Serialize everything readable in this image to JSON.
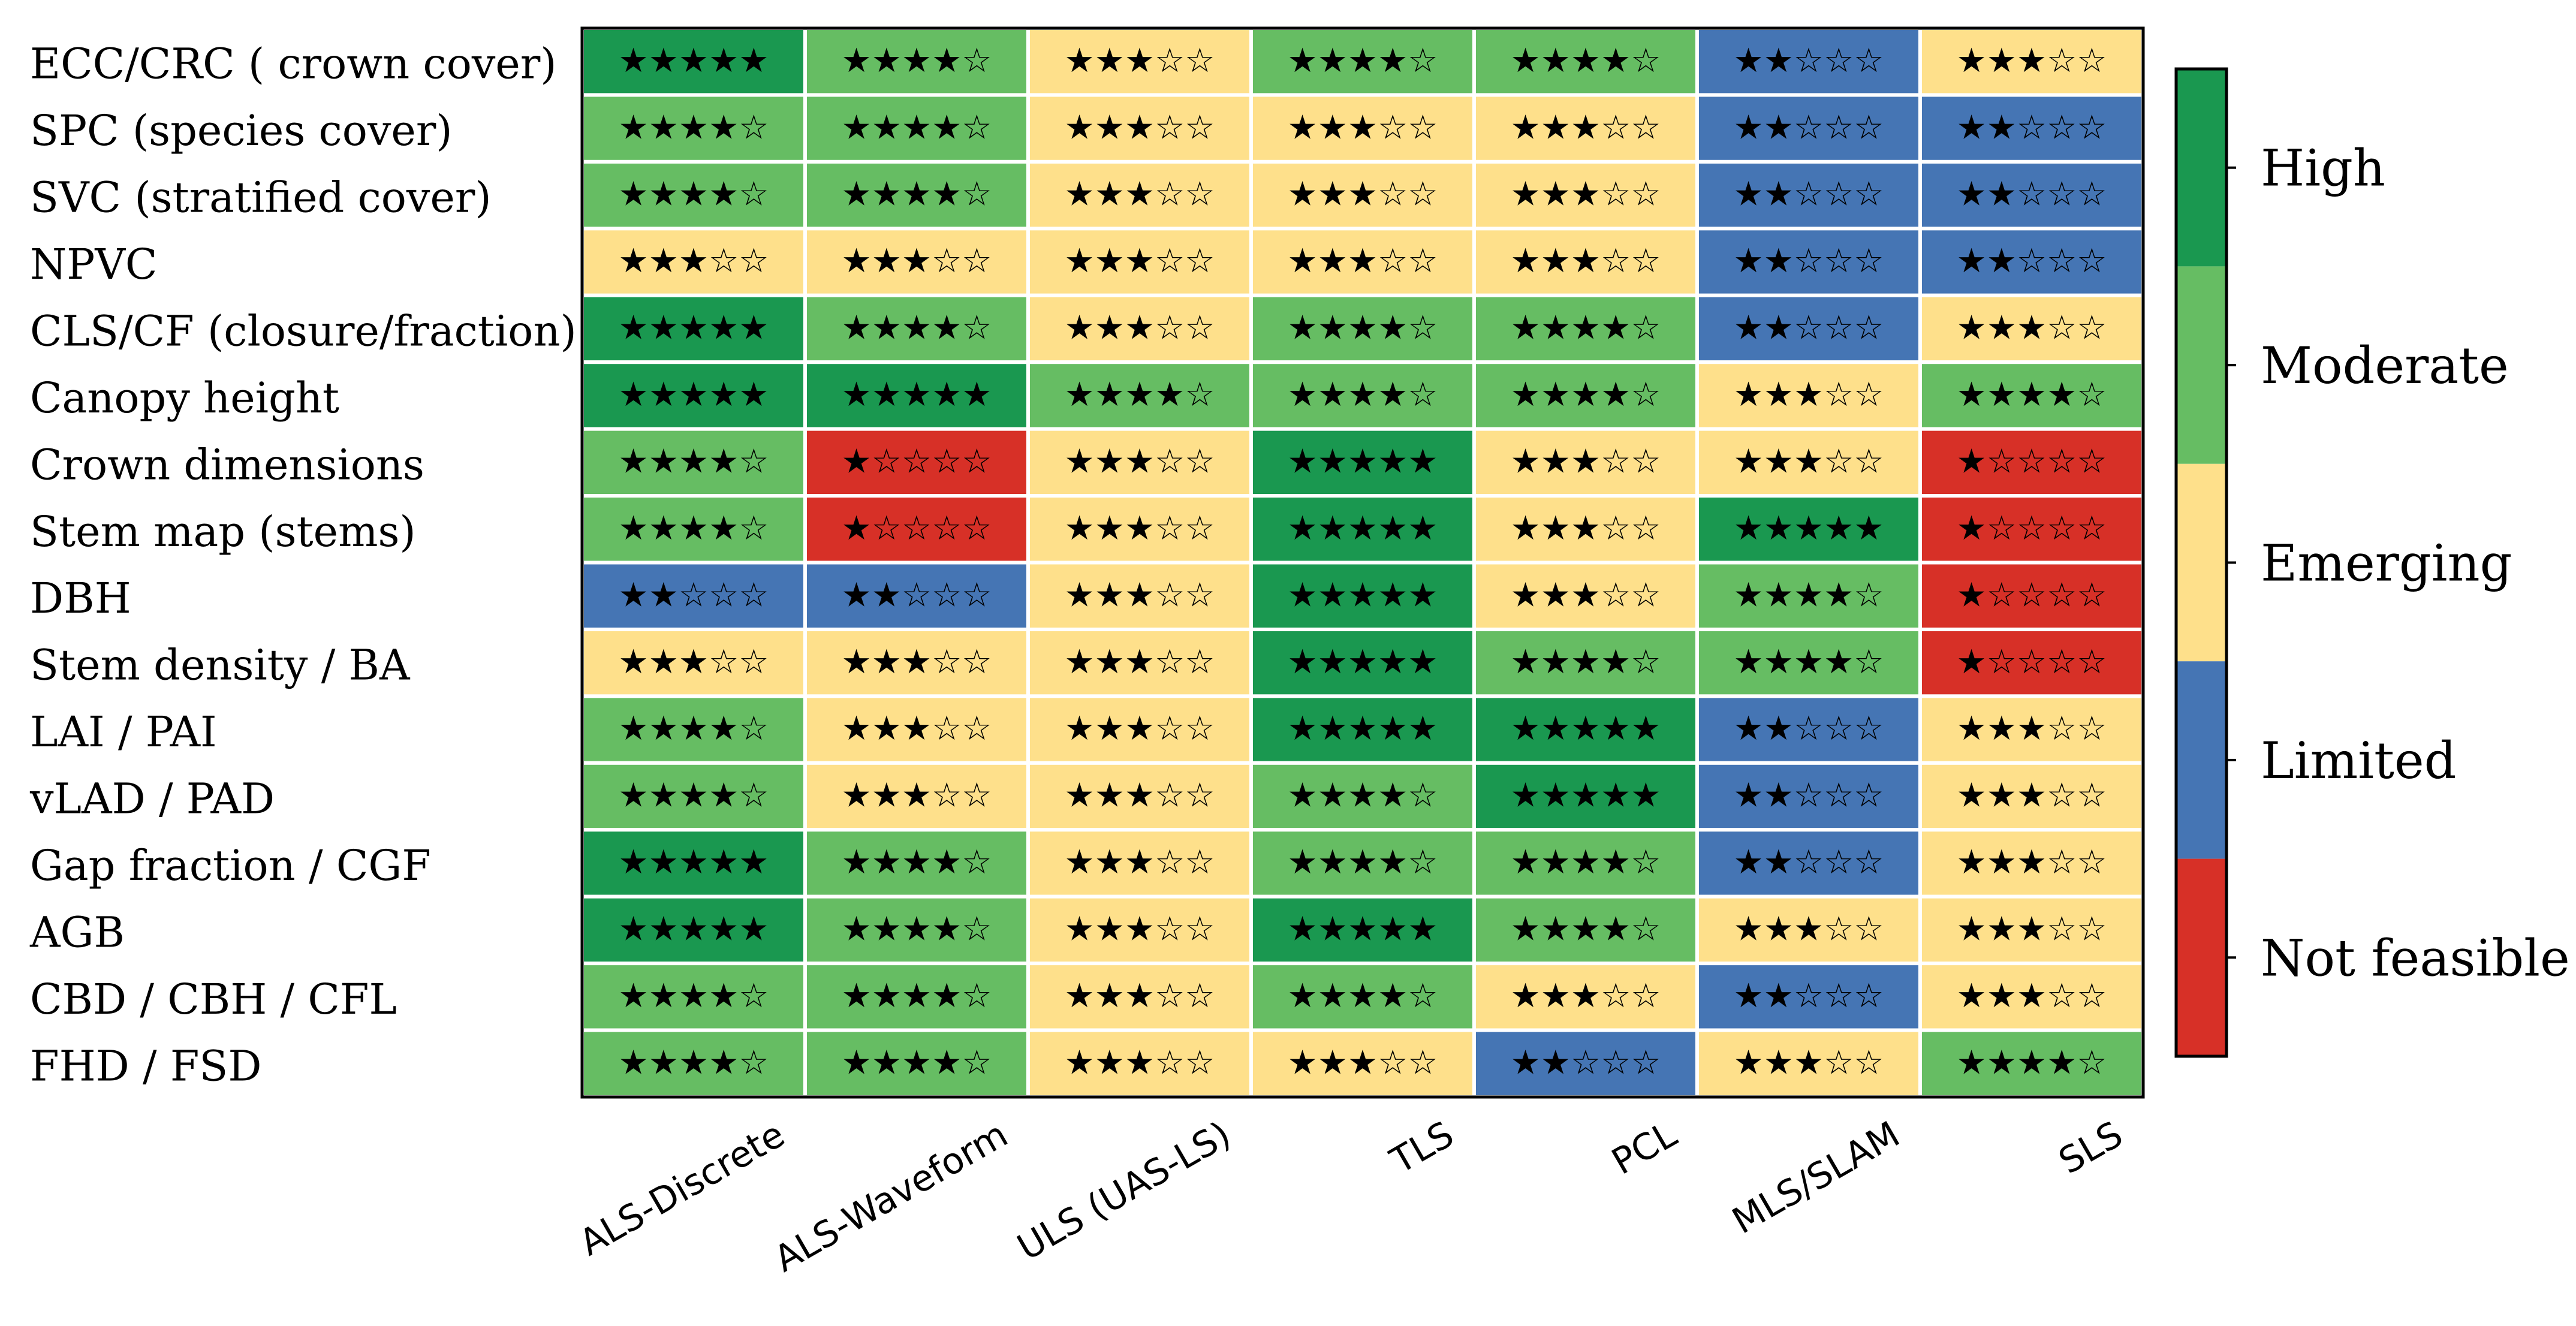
{
  "chart_data": {
    "type": "heatmap",
    "title": "",
    "xlabel": "",
    "ylabel": "",
    "columns": [
      "ALS-Discrete",
      "ALS-Waveform",
      "ULS (UAS-LS)",
      "TLS",
      "PCL",
      "MLS/SLAM",
      "SLS"
    ],
    "rows": [
      "ECC/CRC ( crown cover)",
      "SPC (species cover)",
      "SVC (stratified cover)",
      "NPVC",
      "CLS/CF (closure/fraction)",
      "Canopy height",
      "Crown dimensions",
      "Stem map (stems)",
      "DBH",
      "Stem density / BA",
      "LAI / PAI",
      "vLAD / PAD",
      "Gap fraction / CGF",
      "AGB",
      "CBD / CBH / CFL",
      "FHD / FSD"
    ],
    "values": [
      [
        5,
        4,
        3,
        4,
        4,
        2,
        3
      ],
      [
        4,
        4,
        3,
        3,
        3,
        2,
        2
      ],
      [
        4,
        4,
        3,
        3,
        3,
        2,
        2
      ],
      [
        3,
        3,
        3,
        3,
        3,
        2,
        2
      ],
      [
        5,
        4,
        3,
        4,
        4,
        2,
        3
      ],
      [
        5,
        5,
        4,
        4,
        4,
        3,
        4
      ],
      [
        4,
        1,
        3,
        5,
        3,
        3,
        1
      ],
      [
        4,
        1,
        3,
        5,
        3,
        5,
        1
      ],
      [
        2,
        2,
        3,
        5,
        3,
        4,
        1
      ],
      [
        3,
        3,
        3,
        5,
        4,
        4,
        1
      ],
      [
        4,
        3,
        3,
        5,
        5,
        2,
        3
      ],
      [
        4,
        3,
        3,
        4,
        5,
        2,
        3
      ],
      [
        5,
        4,
        3,
        4,
        4,
        2,
        3
      ],
      [
        5,
        4,
        3,
        5,
        4,
        3,
        3
      ],
      [
        4,
        4,
        3,
        4,
        3,
        2,
        3
      ],
      [
        4,
        4,
        3,
        3,
        2,
        3,
        4
      ]
    ],
    "max_stars": 5,
    "colorbar": {
      "levels": [
        {
          "value": 5,
          "label": "High",
          "color": "#1a9850"
        },
        {
          "value": 4,
          "label": "Moderate",
          "color": "#66bd63"
        },
        {
          "value": 3,
          "label": "Emerging",
          "color": "#fee08b"
        },
        {
          "value": 2,
          "label": "Limited",
          "color": "#4575b4"
        },
        {
          "value": 1,
          "label": "Not feasible",
          "color": "#d73027"
        }
      ]
    },
    "grid_color": "#ffffff"
  }
}
